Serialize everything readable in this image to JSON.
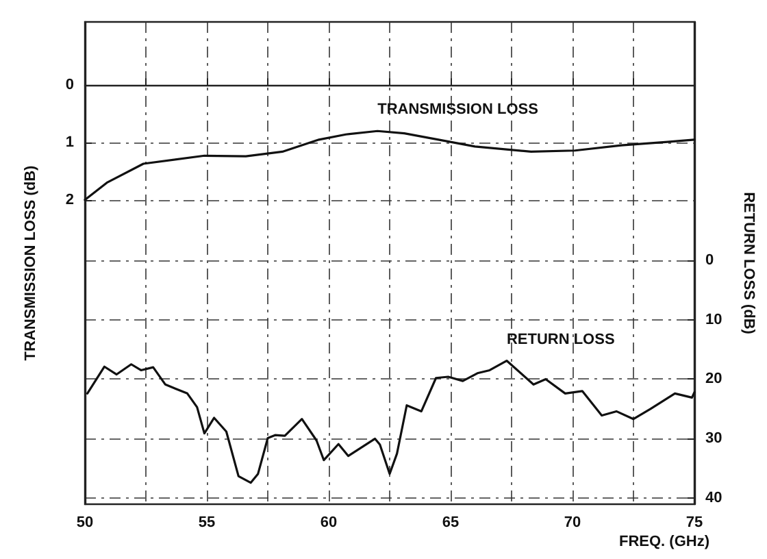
{
  "chart_data": {
    "type": "line",
    "xlabel": "FREQ. (GHz)",
    "ylabel": "TRANSMISSION LOSS (dB)",
    "y2label": "RETURN LOSS (dB)",
    "xlim": [
      50,
      75
    ],
    "xticks": [
      50,
      {
        "value": 52.5,
        "label": null
      },
      55,
      {
        "value": 57.5,
        "label": null
      },
      60,
      {
        "value": 62.5,
        "label": null
      },
      65,
      {
        "value": 67.5,
        "label": null
      },
      70,
      {
        "value": 72.5,
        "label": null
      },
      75
    ],
    "ylim": [
      7.3,
      -1.1
    ],
    "yticks": [
      0,
      1,
      2
    ],
    "y2lim": [
      41,
      -40
    ],
    "y2ticks": [
      0,
      10,
      20,
      30,
      40
    ],
    "grid": true,
    "line_style": "solid",
    "marker": "none",
    "series": [
      {
        "name": "TRANSMISSION LOSS",
        "color": "#111111",
        "x": [
          50,
          50.9,
          52.4,
          54.9,
          56.6,
          58.1,
          59.6,
          60.7,
          62.0,
          63.1,
          64.5,
          66.0,
          68.3,
          70.1,
          72.0,
          73.9,
          75
        ],
        "values": [
          2.0,
          1.7,
          1.37,
          1.23,
          1.24,
          1.16,
          0.95,
          0.86,
          0.8,
          0.84,
          0.95,
          1.07,
          1.16,
          1.14,
          1.05,
          0.99,
          0.95
        ]
      },
      {
        "name": "RETURN LOSS",
        "color": "#111111",
        "axis": "y2",
        "x": [
          50.1,
          50.8,
          51.3,
          51.9,
          52.3,
          52.8,
          53.3,
          54.2,
          54.6,
          54.9,
          55.3,
          55.8,
          56.3,
          56.8,
          57.1,
          57.5,
          57.8,
          58.2,
          58.9,
          59.5,
          59.8,
          60.4,
          60.8,
          61.9,
          62.1,
          62.5,
          62.8,
          63.2,
          63.8,
          64.4,
          64.9,
          65.5,
          66.1,
          66.6,
          67.3,
          68.4,
          68.9,
          69.7,
          70.4,
          71.2,
          71.8,
          72.5,
          73.2,
          74.2,
          74.9,
          75.0
        ],
        "values": [
          22.4,
          17.9,
          19.2,
          17.5,
          18.5,
          18.0,
          20.9,
          22.4,
          24.7,
          29.1,
          26.5,
          28.8,
          36.3,
          37.4,
          35.9,
          29.9,
          29.4,
          29.5,
          26.7,
          30.3,
          33.6,
          30.9,
          32.9,
          30.0,
          31.0,
          35.9,
          32.5,
          24.4,
          25.4,
          19.8,
          19.6,
          20.3,
          19.0,
          18.5,
          16.9,
          20.9,
          20.0,
          22.4,
          22.0,
          26.1,
          25.4,
          26.7,
          25.0,
          22.4,
          23.1,
          22.2
        ]
      }
    ]
  }
}
